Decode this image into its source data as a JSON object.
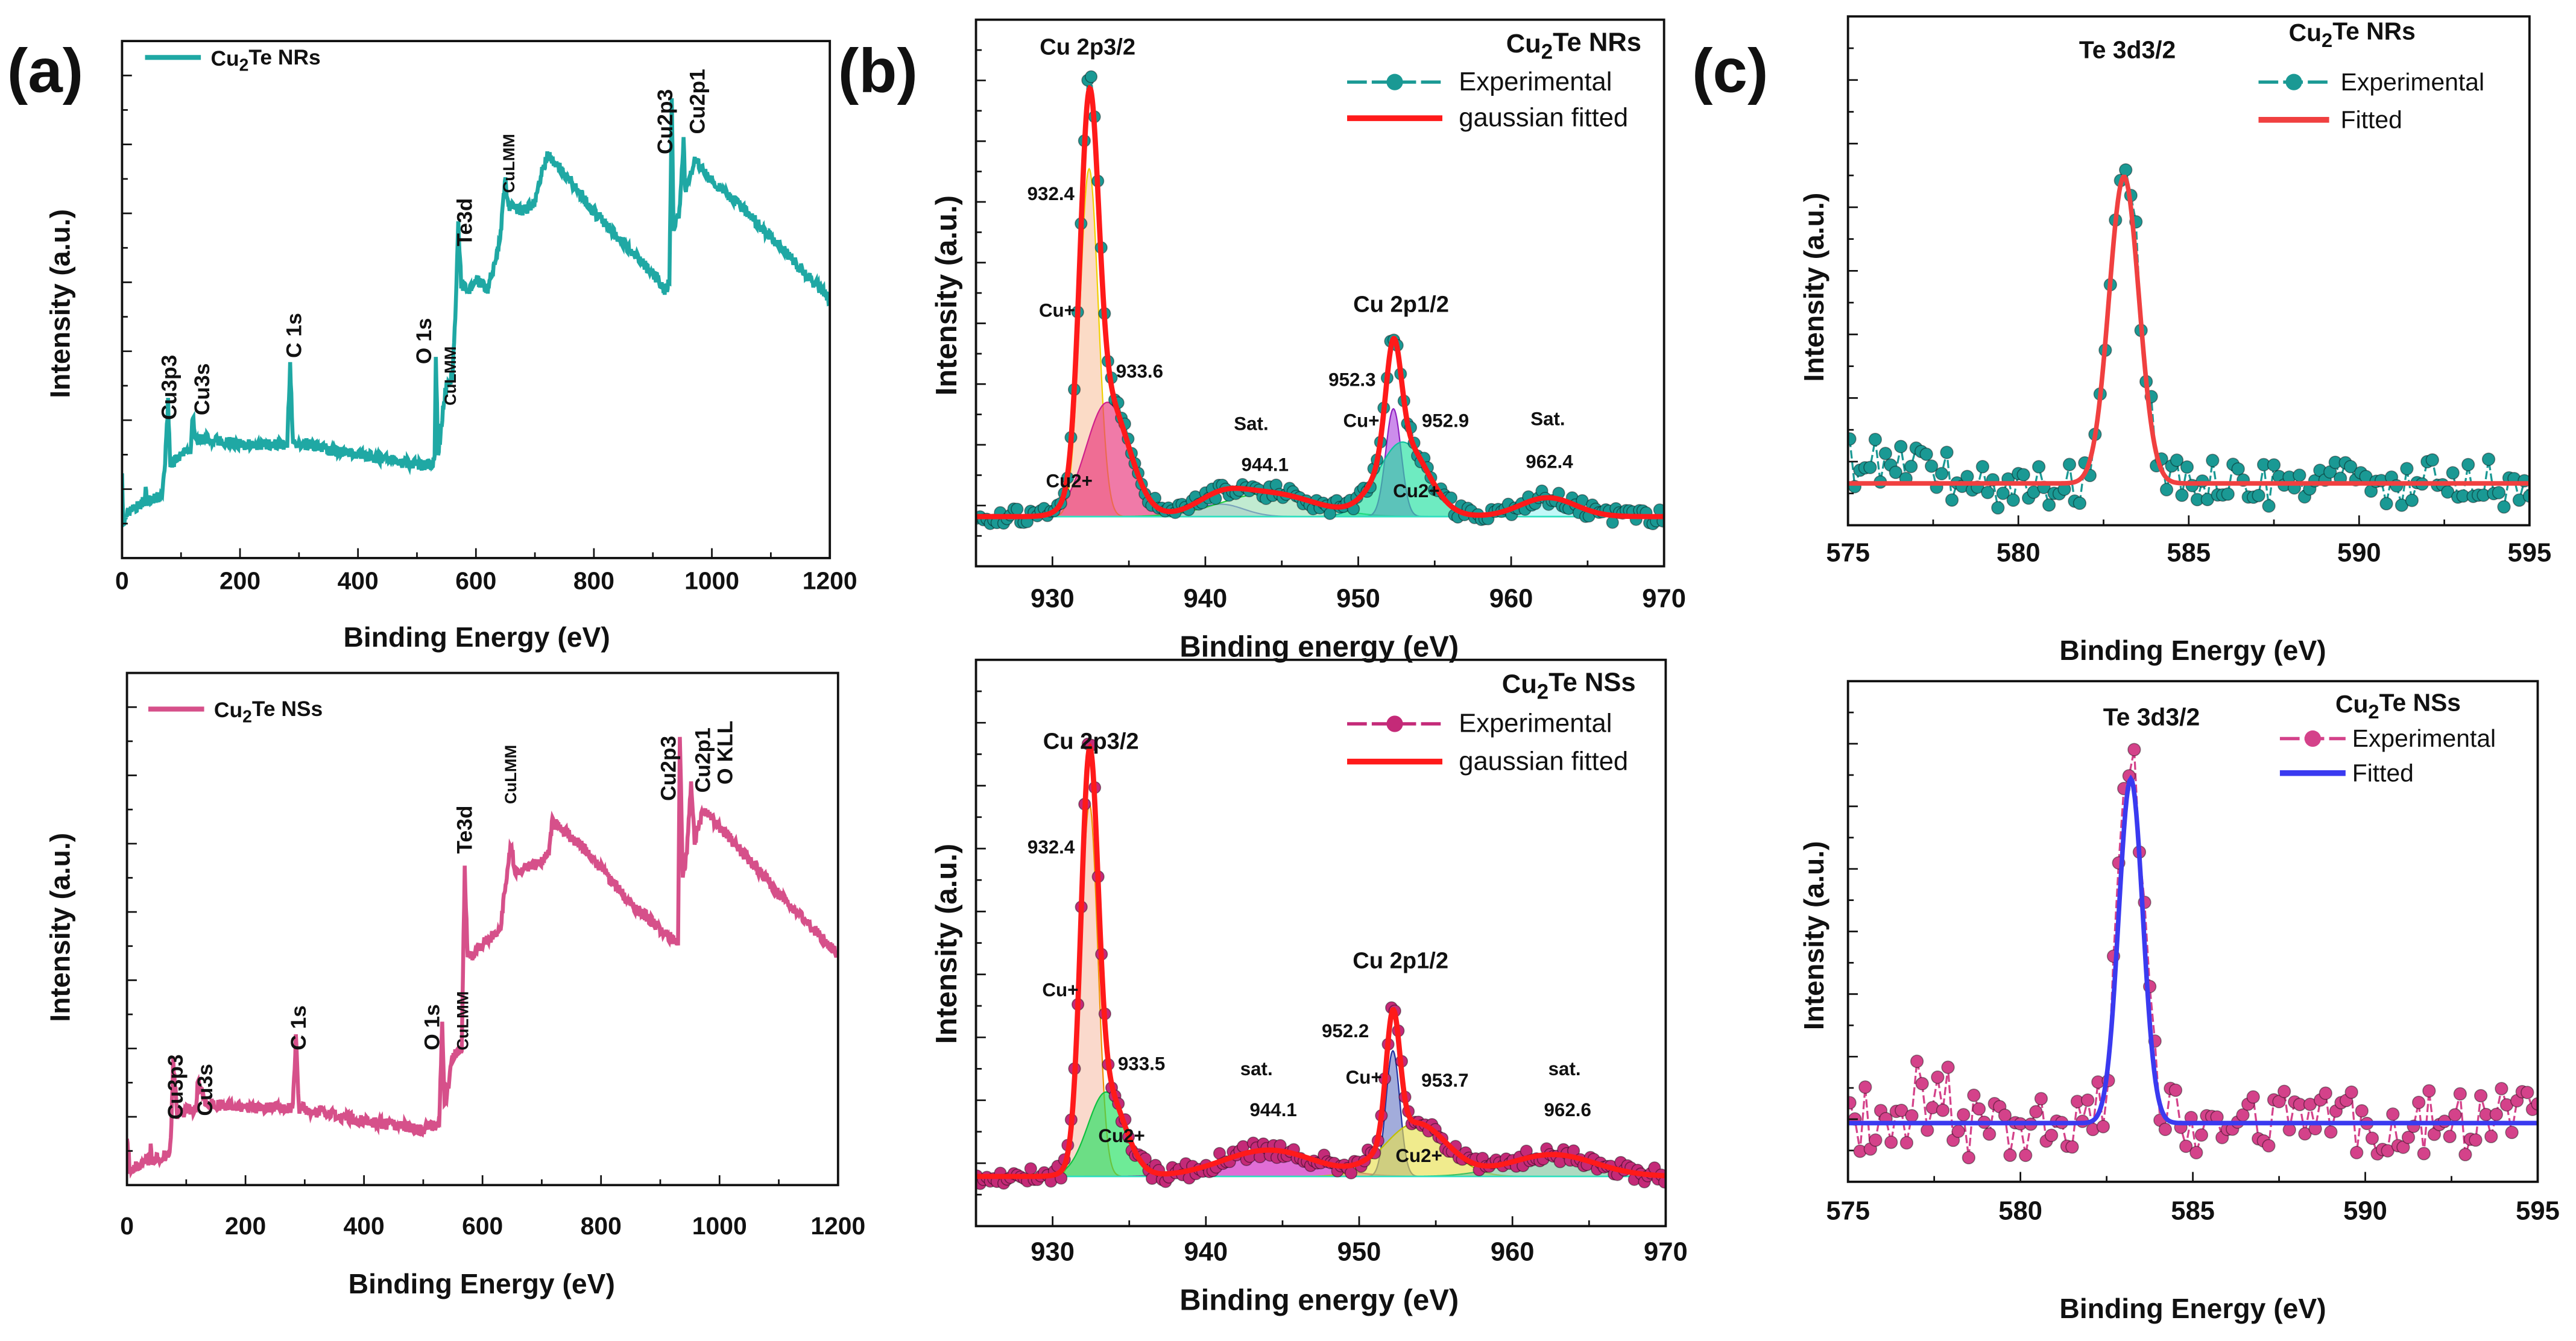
{
  "panel_labels": [
    "(a)",
    "(b)",
    "(c)"
  ],
  "chart_data": [
    {
      "id": "a-top",
      "panel": "(a)",
      "type": "line",
      "xlabel": "Binding Energy (eV)",
      "ylabel": "Intensity (a.u.)",
      "xlim": [
        0,
        1200
      ],
      "ylim": [
        0,
        100
      ],
      "xticks": [
        0,
        200,
        400,
        600,
        800,
        1000,
        1200
      ],
      "grid": false,
      "legend": {
        "placement": "top-left"
      },
      "series": [
        {
          "name": "Cu2Te NRs",
          "color": "#1fa8a4",
          "style": "line",
          "points": [
            [
              0,
              16
            ],
            [
              2,
              7
            ],
            [
              10,
              9
            ],
            [
              38,
              11
            ],
            [
              40,
              14
            ],
            [
              42,
              11
            ],
            [
              68,
              12
            ],
            [
              72,
              17
            ],
            [
              78,
              30
            ],
            [
              82,
              18
            ],
            [
              100,
              20
            ],
            [
              116,
              21
            ],
            [
              120,
              28
            ],
            [
              125,
              23
            ],
            [
              150,
              23
            ],
            [
              200,
              22
            ],
            [
              280,
              22
            ],
            [
              285,
              37
            ],
            [
              290,
              22
            ],
            [
              300,
              22
            ],
            [
              350,
              21
            ],
            [
              400,
              20
            ],
            [
              500,
              18
            ],
            [
              525,
              18
            ],
            [
              530,
              20
            ],
            [
              532,
              38
            ],
            [
              536,
              20
            ],
            [
              548,
              32
            ],
            [
              560,
              35
            ],
            [
              565,
              46
            ],
            [
              570,
              65
            ],
            [
              575,
              53
            ],
            [
              590,
              52
            ],
            [
              600,
              54
            ],
            [
              620,
              52
            ],
            [
              640,
              61
            ],
            [
              650,
              73
            ],
            [
              655,
              68
            ],
            [
              680,
              67
            ],
            [
              700,
              69
            ],
            [
              710,
              74
            ],
            [
              722,
              78
            ],
            [
              760,
              73
            ],
            [
              800,
              67
            ],
            [
              850,
              61
            ],
            [
              900,
              55
            ],
            [
              920,
              52
            ],
            [
              928,
              53
            ],
            [
              932,
              89
            ],
            [
              935,
              64
            ],
            [
              945,
              67
            ],
            [
              952,
              81
            ],
            [
              955,
              71
            ],
            [
              972,
              77
            ],
            [
              1000,
              73
            ],
            [
              1050,
              68
            ],
            [
              1100,
              62
            ],
            [
              1150,
              56
            ],
            [
              1200,
              50
            ]
          ]
        }
      ],
      "annotations": [
        {
          "text": "Cu3p3",
          "x": 78,
          "y": 26.7,
          "rotate": true
        },
        {
          "text": "Cu3s",
          "x": 134,
          "y": 27.6,
          "rotate": true
        },
        {
          "text": "C 1s",
          "x": 290,
          "y": 38.7,
          "rotate": true
        },
        {
          "text": "O 1s",
          "x": 510,
          "y": 37.5,
          "rotate": true
        },
        {
          "text": "CuLMM",
          "x": 552,
          "y": 29.5,
          "rotate": true,
          "small": true
        },
        {
          "text": "Te3d",
          "x": 579,
          "y": 60.3,
          "rotate": true
        },
        {
          "text": "CuLMM",
          "x": 651,
          "y": 70.6,
          "rotate": true,
          "small": true
        },
        {
          "text": "Cu2p3",
          "x": 919,
          "y": 78.1,
          "rotate": true
        },
        {
          "text": "Cu2p1",
          "x": 974,
          "y": 82,
          "rotate": true
        }
      ]
    },
    {
      "id": "a-bottom",
      "panel": "(a)",
      "type": "line",
      "xlabel": "Binding Energy (eV)",
      "ylabel": "Intensity (a.u.)",
      "xlim": [
        0,
        1200
      ],
      "ylim": [
        0,
        100
      ],
      "xticks": [
        0,
        200,
        400,
        600,
        800,
        1000,
        1200
      ],
      "grid": false,
      "legend": {
        "placement": "top-left"
      },
      "series": [
        {
          "name": "Cu2Te NSs",
          "color": "#d6508a",
          "style": "line",
          "points": [
            [
              0,
              10
            ],
            [
              5,
              3
            ],
            [
              38,
              5
            ],
            [
              40,
              7
            ],
            [
              42,
              5
            ],
            [
              70,
              6
            ],
            [
              74,
              9
            ],
            [
              78,
              24
            ],
            [
              85,
              14
            ],
            [
              116,
              15
            ],
            [
              120,
              21
            ],
            [
              130,
              16
            ],
            [
              200,
              15
            ],
            [
              280,
              15
            ],
            [
              285,
              29
            ],
            [
              290,
              15
            ],
            [
              400,
              12.5
            ],
            [
              500,
              11
            ],
            [
              527,
              12
            ],
            [
              532,
              32.5
            ],
            [
              536,
              15
            ],
            [
              550,
              25
            ],
            [
              565,
              27
            ],
            [
              570,
              62
            ],
            [
              575,
              44
            ],
            [
              600,
              47
            ],
            [
              630,
              50
            ],
            [
              640,
              60
            ],
            [
              648,
              67
            ],
            [
              655,
              61
            ],
            [
              700,
              63
            ],
            [
              712,
              65
            ],
            [
              718,
              71
            ],
            [
              770,
              66
            ],
            [
              850,
              55
            ],
            [
              920,
              48
            ],
            [
              930,
              47
            ],
            [
              933,
              88
            ],
            [
              938,
              60
            ],
            [
              945,
              65
            ],
            [
              952,
              78
            ],
            [
              958,
              67
            ],
            [
              972,
              73
            ],
            [
              1000,
              70
            ],
            [
              1100,
              57
            ],
            [
              1200,
              45
            ]
          ]
        }
      ],
      "annotations": [
        {
          "text": "Cu3p3",
          "x": 80,
          "y": 12.8,
          "rotate": true
        },
        {
          "text": "Cu3s",
          "x": 130,
          "y": 13.5,
          "rotate": true
        },
        {
          "text": "C 1s",
          "x": 288,
          "y": 26.3,
          "rotate": true
        },
        {
          "text": "O 1s",
          "x": 513,
          "y": 26.3,
          "rotate": true
        },
        {
          "text": "CuLMM",
          "x": 562,
          "y": 26.3,
          "rotate": true,
          "small": true
        },
        {
          "text": "Te3d",
          "x": 568,
          "y": 64.7,
          "rotate": true
        },
        {
          "text": "CuLMM",
          "x": 643,
          "y": 74.4,
          "rotate": true,
          "small": true
        },
        {
          "text": "Cu2p3",
          "x": 912,
          "y": 75,
          "rotate": true
        },
        {
          "text": "Cu2p1",
          "x": 970,
          "y": 76.6,
          "rotate": true
        },
        {
          "text": "O KLL",
          "x": 1008,
          "y": 78.2,
          "rotate": true
        }
      ]
    },
    {
      "id": "b-top",
      "panel": "(b)",
      "type": "line",
      "xlabel": "Binding energy (eV)",
      "ylabel": "Intensity (a.u.)",
      "xlim": [
        925,
        970
      ],
      "ylim": [
        -10,
        100
      ],
      "xticks": [
        930,
        940,
        950,
        960,
        970
      ],
      "grid": false,
      "legend": {
        "placement": "top-right",
        "title": "Cu2Te NRs"
      },
      "series": [
        {
          "name": "Experimental",
          "color": "#1a9994",
          "style": "markers+dashed"
        },
        {
          "name": "gaussian fitted",
          "color": "#ff1a1a",
          "style": "line"
        }
      ],
      "components": [
        {
          "center": 932.4,
          "amplitude": 70,
          "sigma": 0.6,
          "fill": "#f9c7a8",
          "stroke": "#f0d000"
        },
        {
          "center": 933.6,
          "amplitude": 23,
          "sigma": 1.4,
          "fill": "#e8337a",
          "stroke": "#d0208a"
        },
        {
          "center": 941.0,
          "amplitude": 2.5,
          "sigma": 1.5,
          "fill": "#b8b8e8",
          "stroke": "#3030c0"
        },
        {
          "center": 944.1,
          "amplitude": 4.7,
          "sigma": 3.0,
          "fill": "#9fe0b8",
          "stroke": "#20d040"
        },
        {
          "center": 952.3,
          "amplitude": 21.7,
          "sigma": 0.5,
          "fill": "#b050e0",
          "stroke": "#9020c0"
        },
        {
          "center": 952.9,
          "amplitude": 15,
          "sigma": 1.6,
          "fill": "#20e0a0",
          "stroke": "#10c0a0"
        },
        {
          "center": 962.4,
          "amplitude": 3.8,
          "sigma": 1.8,
          "fill": "#9ff5f5",
          "stroke": "#00e0f0"
        }
      ],
      "annotations": [
        {
          "text": "Cu 2p3/2",
          "x": 932.3,
          "y": 93
        },
        {
          "text": "932.4",
          "x": 929.9,
          "y": 63.7,
          "light": true
        },
        {
          "text": "Cu+",
          "x": 930.3,
          "y": 40.2,
          "light": true
        },
        {
          "text": "933.6",
          "x": 935.7,
          "y": 28,
          "light": true
        },
        {
          "text": "Sat.",
          "x": 943.0,
          "y": 17.4,
          "light": true
        },
        {
          "text": "944.1",
          "x": 943.9,
          "y": 9.2,
          "light": true
        },
        {
          "text": "Cu 2p1/2",
          "x": 952.8,
          "y": 41.2
        },
        {
          "text": "952.3",
          "x": 949.6,
          "y": 26.3,
          "light": true
        },
        {
          "text": "Cu+",
          "x": 950.2,
          "y": 18
        },
        {
          "text": "952.9",
          "x": 955.7,
          "y": 18,
          "light": true
        },
        {
          "text": "Sat.",
          "x": 962.4,
          "y": 18.4,
          "light": true
        },
        {
          "text": "962.4",
          "x": 962.5,
          "y": 9.8,
          "light": true
        },
        {
          "text": "Cu2+",
          "x": 931.1,
          "y": 5.9,
          "light": true
        },
        {
          "text": "Cu2+",
          "x": 953.8,
          "y": 3.9
        }
      ]
    },
    {
      "id": "b-bottom",
      "panel": "(b)",
      "type": "line",
      "xlabel": "Binding energy (eV)",
      "ylabel": "Intensity (a.u.)",
      "xlim": [
        925,
        970
      ],
      "ylim": [
        -10,
        104
      ],
      "xticks": [
        930,
        940,
        950,
        960,
        970
      ],
      "grid": false,
      "legend": {
        "placement": "top-right",
        "title": "Cu2Te NSs"
      },
      "series": [
        {
          "name": "Experimental",
          "color": "#c42a78",
          "style": "markers+dashed"
        },
        {
          "name": "gaussian fitted",
          "color": "#ff1a1a",
          "style": "line"
        }
      ],
      "components": [
        {
          "center": 932.4,
          "amplitude": 75,
          "sigma": 0.55,
          "fill": "#f7c4b0",
          "stroke": "#f09000"
        },
        {
          "center": 933.5,
          "amplitude": 17,
          "sigma": 1.2,
          "fill": "#20e060",
          "stroke": "#10c040"
        },
        {
          "center": 944.1,
          "amplitude": 5.3,
          "sigma": 3.0,
          "fill": "#d020c0",
          "stroke": "#a01090"
        },
        {
          "center": 952.2,
          "amplitude": 25.3,
          "sigma": 0.45,
          "fill": "#7080c8",
          "stroke": "#2030a0"
        },
        {
          "center": 953.7,
          "amplitude": 10.7,
          "sigma": 2.0,
          "fill": "#e8e050",
          "stroke": "#c0c000"
        },
        {
          "center": 962.6,
          "amplitude": 4.4,
          "sigma": 2.8,
          "fill": "#80c8a0",
          "stroke": "#40c060"
        }
      ],
      "annotations": [
        {
          "text": "Cu 2p3/2",
          "x": 932.5,
          "y": 86.1
        },
        {
          "text": "932.4",
          "x": 929.9,
          "y": 65
        },
        {
          "text": "Cu+",
          "x": 930.5,
          "y": 36.3
        },
        {
          "text": "933.5",
          "x": 935.8,
          "y": 21.4
        },
        {
          "text": "sat.",
          "x": 943.3,
          "y": 20.4
        },
        {
          "text": "944.1",
          "x": 944.4,
          "y": 12.1
        },
        {
          "text": "Cu 2p1/2",
          "x": 952.7,
          "y": 41.9
        },
        {
          "text": "952.2",
          "x": 949.1,
          "y": 28
        },
        {
          "text": "Cu+",
          "x": 950.3,
          "y": 18.7
        },
        {
          "text": "953.7",
          "x": 955.6,
          "y": 18.1
        },
        {
          "text": "sat.",
          "x": 963.4,
          "y": 20.4
        },
        {
          "text": "962.6",
          "x": 963.6,
          "y": 12.1
        },
        {
          "text": "Cu2+",
          "x": 934.5,
          "y": 6.9
        },
        {
          "text": "Cu2+",
          "x": 953.9,
          "y": 2.9
        }
      ]
    },
    {
      "id": "c-top",
      "panel": "(c)",
      "type": "line",
      "xlabel": "Binding Energy (eV)",
      "ylabel": "Intensity (a.u.)",
      "xlim": [
        575,
        595
      ],
      "ylim": [
        -12,
        134
      ],
      "xticks": [
        575,
        580,
        585,
        590,
        595
      ],
      "grid": false,
      "legend": {
        "placement": "top-right",
        "title": "Cu2Te NRs"
      },
      "series": [
        {
          "name": "Experimental",
          "color": "#1a9994",
          "style": "markers+dashed"
        },
        {
          "name": "Fitted",
          "color": "#f04040",
          "style": "line"
        }
      ],
      "components": [
        {
          "center": 583.1,
          "amplitude": 88,
          "sigma": 0.44
        }
      ],
      "annotations": [
        {
          "text": "Te 3d3/2",
          "x": 583.2,
          "y": 122
        }
      ]
    },
    {
      "id": "c-bottom",
      "panel": "(c)",
      "type": "line",
      "xlabel": "Binding Energy (eV)",
      "ylabel": "Intensity (a.u.)",
      "xlim": [
        575,
        595
      ],
      "ylim": [
        -15,
        113
      ],
      "xticks": [
        575,
        580,
        585,
        590,
        595
      ],
      "grid": false,
      "legend": {
        "placement": "top-right",
        "title": "Cu2Te NSs"
      },
      "series": [
        {
          "name": "Experimental",
          "color": "#d4428a",
          "style": "markers+dashed"
        },
        {
          "name": "Fitted",
          "color": "#3a3af0",
          "style": "line"
        }
      ],
      "components": [
        {
          "center": 583.2,
          "amplitude": 88,
          "sigma": 0.35
        }
      ],
      "annotations": [
        {
          "text": "Te 3d3/2",
          "x": 583.8,
          "y": 101.7
        }
      ]
    }
  ]
}
